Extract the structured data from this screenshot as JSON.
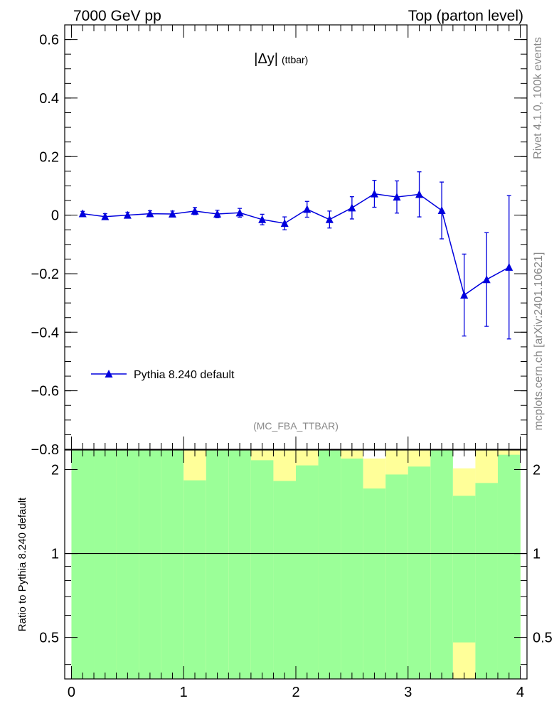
{
  "header": {
    "left": "7000 GeV pp",
    "right": "Top (parton level)"
  },
  "side": {
    "rivet": "Rivet 4.1.0,  100k events",
    "mcplots": "mcplots.cern.ch [arXiv:2401.10621]"
  },
  "colors": {
    "series": "#0000dd",
    "band_green": "#9bff98",
    "band_yellow": "#ffff99",
    "band_white": "#ffffff"
  },
  "chart_data": {
    "type": "line",
    "title": "|Δy|",
    "title_suffix": "(ttbar)",
    "analysis": "(MC_FBA_TTBAR)",
    "xlabel": "",
    "ylabel": "",
    "xlim": [
      -0.06,
      4.06
    ],
    "ylim": [
      -0.8,
      0.65
    ],
    "yticks": [
      0.6,
      0.4,
      0.2,
      0,
      -0.2,
      -0.4,
      -0.6,
      -0.8
    ],
    "ytick_labels": [
      "0.6",
      "0.4",
      "0.2",
      "0",
      "−0.2",
      "−0.4",
      "−0.6",
      "−0.8"
    ],
    "series": [
      {
        "name": "Pythia 8.240 default",
        "x": [
          0.1,
          0.3,
          0.5,
          0.7,
          0.9,
          1.1,
          1.3,
          1.5,
          1.7,
          1.9,
          2.1,
          2.3,
          2.5,
          2.7,
          2.9,
          3.1,
          3.3,
          3.5,
          3.7,
          3.9
        ],
        "y": [
          0.005,
          -0.005,
          0.0,
          0.005,
          0.004,
          0.014,
          0.004,
          0.008,
          -0.015,
          -0.028,
          0.02,
          -0.015,
          0.025,
          0.073,
          0.062,
          0.071,
          0.016,
          -0.273,
          -0.22,
          -0.178
        ],
        "err": [
          0.008,
          0.01,
          0.01,
          0.01,
          0.01,
          0.012,
          0.013,
          0.015,
          0.018,
          0.022,
          0.027,
          0.029,
          0.038,
          0.046,
          0.055,
          0.077,
          0.097,
          0.14,
          0.16,
          0.245
        ]
      }
    ],
    "ratio": {
      "ylabel": "Ratio to Pythia 8.240 default",
      "ylim": [
        0.355,
        2.35
      ],
      "log": true,
      "yticks": [
        2,
        1,
        0.5
      ],
      "ytick_labels": [
        "2",
        "1",
        "0.5"
      ],
      "xticks": [
        0,
        1,
        2,
        3,
        4
      ],
      "xtick_labels": [
        "0",
        "1",
        "2",
        "3",
        "4"
      ],
      "reference": 1,
      "bins": [
        0.0,
        0.2,
        0.4,
        0.6,
        0.8,
        1.0,
        1.2,
        1.4,
        1.6,
        1.8,
        2.0,
        2.2,
        2.4,
        2.6,
        2.8,
        3.0,
        3.2,
        3.4,
        3.6,
        3.8,
        4.0
      ],
      "green_upper": [
        2.35,
        2.35,
        2.35,
        2.35,
        2.35,
        1.83,
        2.35,
        2.35,
        2.16,
        1.82,
        2.07,
        2.35,
        2.19,
        1.71,
        1.92,
        2.05,
        2.35,
        1.61,
        1.79,
        2.26
      ],
      "yellow_upper": [
        2.35,
        2.35,
        2.35,
        2.35,
        2.35,
        2.35,
        2.35,
        2.35,
        2.35,
        2.35,
        2.35,
        2.35,
        2.35,
        2.19,
        2.35,
        2.35,
        2.35,
        2.02,
        2.35,
        2.35
      ],
      "yellow_bottom": [
        null,
        null,
        null,
        null,
        null,
        null,
        null,
        null,
        null,
        null,
        null,
        null,
        null,
        null,
        null,
        null,
        null,
        0.48,
        null,
        null
      ]
    }
  }
}
